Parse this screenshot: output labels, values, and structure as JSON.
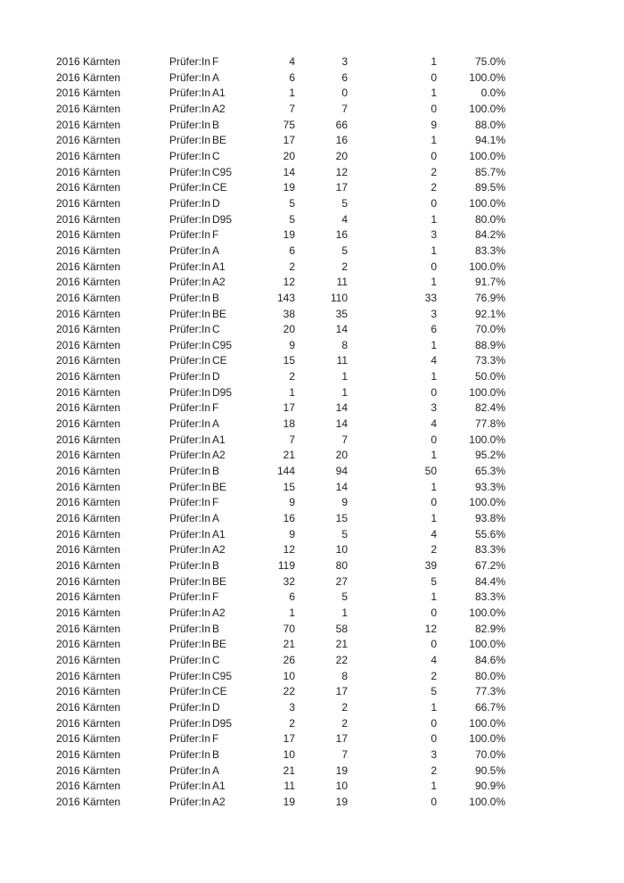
{
  "page": {
    "background_color": "#ffffff",
    "text_color": "#212121"
  },
  "table": {
    "columns": [
      "year_region",
      "examiner_role",
      "license_category",
      "candidates_total",
      "passed_count",
      "failed_count",
      "pass_rate"
    ],
    "rows": [
      [
        "2016 Kärnten",
        "Prüfer:In",
        "F",
        "4",
        "3",
        "1",
        "75.0%"
      ],
      [
        "2016 Kärnten",
        "Prüfer:In",
        "A",
        "6",
        "6",
        "0",
        "100.0%"
      ],
      [
        "2016 Kärnten",
        "Prüfer:In",
        "A1",
        "1",
        "0",
        "1",
        "0.0%"
      ],
      [
        "2016 Kärnten",
        "Prüfer:In",
        "A2",
        "7",
        "7",
        "0",
        "100.0%"
      ],
      [
        "2016 Kärnten",
        "Prüfer:In",
        "B",
        "75",
        "66",
        "9",
        "88.0%"
      ],
      [
        "2016 Kärnten",
        "Prüfer:In",
        "BE",
        "17",
        "16",
        "1",
        "94.1%"
      ],
      [
        "2016 Kärnten",
        "Prüfer:In",
        "C",
        "20",
        "20",
        "0",
        "100.0%"
      ],
      [
        "2016 Kärnten",
        "Prüfer:In",
        "C95",
        "14",
        "12",
        "2",
        "85.7%"
      ],
      [
        "2016 Kärnten",
        "Prüfer:In",
        "CE",
        "19",
        "17",
        "2",
        "89.5%"
      ],
      [
        "2016 Kärnten",
        "Prüfer:In",
        "D",
        "5",
        "5",
        "0",
        "100.0%"
      ],
      [
        "2016 Kärnten",
        "Prüfer:In",
        "D95",
        "5",
        "4",
        "1",
        "80.0%"
      ],
      [
        "2016 Kärnten",
        "Prüfer:In",
        "F",
        "19",
        "16",
        "3",
        "84.2%"
      ],
      [
        "2016 Kärnten",
        "Prüfer:In",
        "A",
        "6",
        "5",
        "1",
        "83.3%"
      ],
      [
        "2016 Kärnten",
        "Prüfer:In",
        "A1",
        "2",
        "2",
        "0",
        "100.0%"
      ],
      [
        "2016 Kärnten",
        "Prüfer:In",
        "A2",
        "12",
        "11",
        "1",
        "91.7%"
      ],
      [
        "2016 Kärnten",
        "Prüfer:In",
        "B",
        "143",
        "110",
        "33",
        "76.9%"
      ],
      [
        "2016 Kärnten",
        "Prüfer:In",
        "BE",
        "38",
        "35",
        "3",
        "92.1%"
      ],
      [
        "2016 Kärnten",
        "Prüfer:In",
        "C",
        "20",
        "14",
        "6",
        "70.0%"
      ],
      [
        "2016 Kärnten",
        "Prüfer:In",
        "C95",
        "9",
        "8",
        "1",
        "88.9%"
      ],
      [
        "2016 Kärnten",
        "Prüfer:In",
        "CE",
        "15",
        "11",
        "4",
        "73.3%"
      ],
      [
        "2016 Kärnten",
        "Prüfer:In",
        "D",
        "2",
        "1",
        "1",
        "50.0%"
      ],
      [
        "2016 Kärnten",
        "Prüfer:In",
        "D95",
        "1",
        "1",
        "0",
        "100.0%"
      ],
      [
        "2016 Kärnten",
        "Prüfer:In",
        "F",
        "17",
        "14",
        "3",
        "82.4%"
      ],
      [
        "2016 Kärnten",
        "Prüfer:In",
        "A",
        "18",
        "14",
        "4",
        "77.8%"
      ],
      [
        "2016 Kärnten",
        "Prüfer:In",
        "A1",
        "7",
        "7",
        "0",
        "100.0%"
      ],
      [
        "2016 Kärnten",
        "Prüfer:In",
        "A2",
        "21",
        "20",
        "1",
        "95.2%"
      ],
      [
        "2016 Kärnten",
        "Prüfer:In",
        "B",
        "144",
        "94",
        "50",
        "65.3%"
      ],
      [
        "2016 Kärnten",
        "Prüfer:In",
        "BE",
        "15",
        "14",
        "1",
        "93.3%"
      ],
      [
        "2016 Kärnten",
        "Prüfer:In",
        "F",
        "9",
        "9",
        "0",
        "100.0%"
      ],
      [
        "2016 Kärnten",
        "Prüfer:In",
        "A",
        "16",
        "15",
        "1",
        "93.8%"
      ],
      [
        "2016 Kärnten",
        "Prüfer:In",
        "A1",
        "9",
        "5",
        "4",
        "55.6%"
      ],
      [
        "2016 Kärnten",
        "Prüfer:In",
        "A2",
        "12",
        "10",
        "2",
        "83.3%"
      ],
      [
        "2016 Kärnten",
        "Prüfer:In",
        "B",
        "119",
        "80",
        "39",
        "67.2%"
      ],
      [
        "2016 Kärnten",
        "Prüfer:In",
        "BE",
        "32",
        "27",
        "5",
        "84.4%"
      ],
      [
        "2016 Kärnten",
        "Prüfer:In",
        "F",
        "6",
        "5",
        "1",
        "83.3%"
      ],
      [
        "2016 Kärnten",
        "Prüfer:In",
        "A2",
        "1",
        "1",
        "0",
        "100.0%"
      ],
      [
        "2016 Kärnten",
        "Prüfer:In",
        "B",
        "70",
        "58",
        "12",
        "82.9%"
      ],
      [
        "2016 Kärnten",
        "Prüfer:In",
        "BE",
        "21",
        "21",
        "0",
        "100.0%"
      ],
      [
        "2016 Kärnten",
        "Prüfer:In",
        "C",
        "26",
        "22",
        "4",
        "84.6%"
      ],
      [
        "2016 Kärnten",
        "Prüfer:In",
        "C95",
        "10",
        "8",
        "2",
        "80.0%"
      ],
      [
        "2016 Kärnten",
        "Prüfer:In",
        "CE",
        "22",
        "17",
        "5",
        "77.3%"
      ],
      [
        "2016 Kärnten",
        "Prüfer:In",
        "D",
        "3",
        "2",
        "1",
        "66.7%"
      ],
      [
        "2016 Kärnten",
        "Prüfer:In",
        "D95",
        "2",
        "2",
        "0",
        "100.0%"
      ],
      [
        "2016 Kärnten",
        "Prüfer:In",
        "F",
        "17",
        "17",
        "0",
        "100.0%"
      ],
      [
        "2016 Kärnten",
        "Prüfer:In",
        "B",
        "10",
        "7",
        "3",
        "70.0%"
      ],
      [
        "2016 Kärnten",
        "Prüfer:In",
        "A",
        "21",
        "19",
        "2",
        "90.5%"
      ],
      [
        "2016 Kärnten",
        "Prüfer:In",
        "A1",
        "11",
        "10",
        "1",
        "90.9%"
      ],
      [
        "2016 Kärnten",
        "Prüfer:In",
        "A2",
        "19",
        "19",
        "0",
        "100.0%"
      ]
    ]
  }
}
